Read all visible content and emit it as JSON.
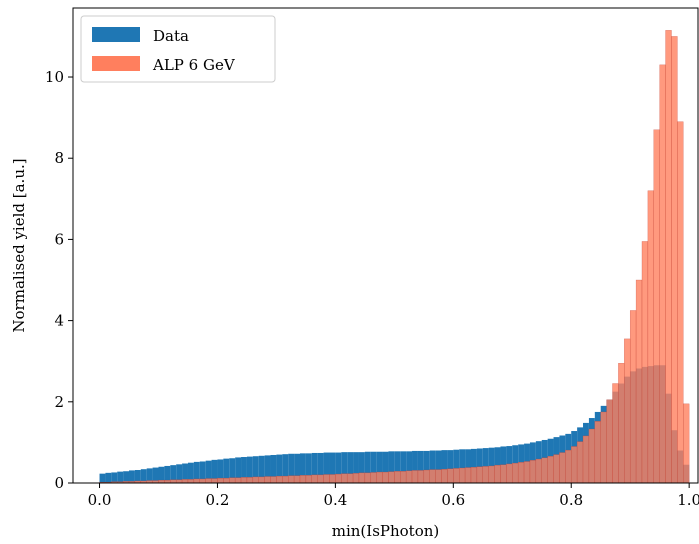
{
  "chart_data": {
    "type": "bar",
    "xlabel": "min(IsPhoton)",
    "ylabel": "Normalised yield [a.u.]",
    "xlim": [
      -0.045,
      1.015
    ],
    "ylim": [
      0,
      11.7
    ],
    "xticks": [
      0.0,
      0.2,
      0.4,
      0.6,
      0.8,
      1.0
    ],
    "xtick_labels": [
      "0.0",
      "0.2",
      "0.4",
      "0.6",
      "0.8",
      "1.0"
    ],
    "yticks": [
      0,
      2,
      4,
      6,
      8,
      10
    ],
    "ytick_labels": [
      "0",
      "2",
      "4",
      "6",
      "8",
      "10"
    ],
    "legend_position": "top-left",
    "bin_width": 0.01,
    "series": [
      {
        "name": "Data",
        "color": "#1f77b4",
        "bin_start": 0.0,
        "values": [
          0.23,
          0.25,
          0.26,
          0.28,
          0.29,
          0.31,
          0.32,
          0.34,
          0.36,
          0.38,
          0.4,
          0.42,
          0.44,
          0.46,
          0.48,
          0.5,
          0.52,
          0.53,
          0.55,
          0.57,
          0.58,
          0.6,
          0.61,
          0.63,
          0.64,
          0.65,
          0.66,
          0.67,
          0.68,
          0.69,
          0.7,
          0.71,
          0.72,
          0.72,
          0.73,
          0.73,
          0.74,
          0.74,
          0.75,
          0.75,
          0.75,
          0.76,
          0.76,
          0.76,
          0.76,
          0.77,
          0.77,
          0.77,
          0.77,
          0.78,
          0.78,
          0.78,
          0.78,
          0.79,
          0.79,
          0.79,
          0.8,
          0.8,
          0.81,
          0.81,
          0.82,
          0.83,
          0.83,
          0.84,
          0.85,
          0.86,
          0.87,
          0.88,
          0.9,
          0.91,
          0.93,
          0.95,
          0.97,
          1.0,
          1.03,
          1.06,
          1.09,
          1.13,
          1.17,
          1.21,
          1.28,
          1.37,
          1.48,
          1.6,
          1.75,
          1.9,
          2.05,
          2.25,
          2.45,
          2.62,
          2.75,
          2.82,
          2.86,
          2.88,
          2.9,
          2.9,
          2.2,
          1.3,
          0.8,
          0.45
        ]
      },
      {
        "name": "ALP 6 GeV",
        "color": "#ff7f5e",
        "bin_start": 0.0,
        "values": [
          0.02,
          0.02,
          0.03,
          0.03,
          0.04,
          0.04,
          0.05,
          0.05,
          0.06,
          0.06,
          0.07,
          0.07,
          0.08,
          0.08,
          0.09,
          0.09,
          0.1,
          0.1,
          0.11,
          0.11,
          0.12,
          0.12,
          0.13,
          0.13,
          0.14,
          0.14,
          0.15,
          0.15,
          0.16,
          0.16,
          0.17,
          0.17,
          0.18,
          0.18,
          0.19,
          0.19,
          0.2,
          0.2,
          0.21,
          0.21,
          0.22,
          0.23,
          0.23,
          0.24,
          0.25,
          0.25,
          0.26,
          0.27,
          0.27,
          0.28,
          0.29,
          0.29,
          0.3,
          0.31,
          0.31,
          0.32,
          0.33,
          0.33,
          0.34,
          0.35,
          0.36,
          0.37,
          0.38,
          0.39,
          0.4,
          0.41,
          0.42,
          0.44,
          0.45,
          0.47,
          0.49,
          0.51,
          0.53,
          0.56,
          0.59,
          0.62,
          0.66,
          0.7,
          0.75,
          0.81,
          0.9,
          1.02,
          1.16,
          1.33,
          1.52,
          1.75,
          2.05,
          2.45,
          2.95,
          3.55,
          4.25,
          5.0,
          5.95,
          7.2,
          8.7,
          10.3,
          11.15,
          11.0,
          8.9,
          1.95
        ]
      }
    ]
  }
}
